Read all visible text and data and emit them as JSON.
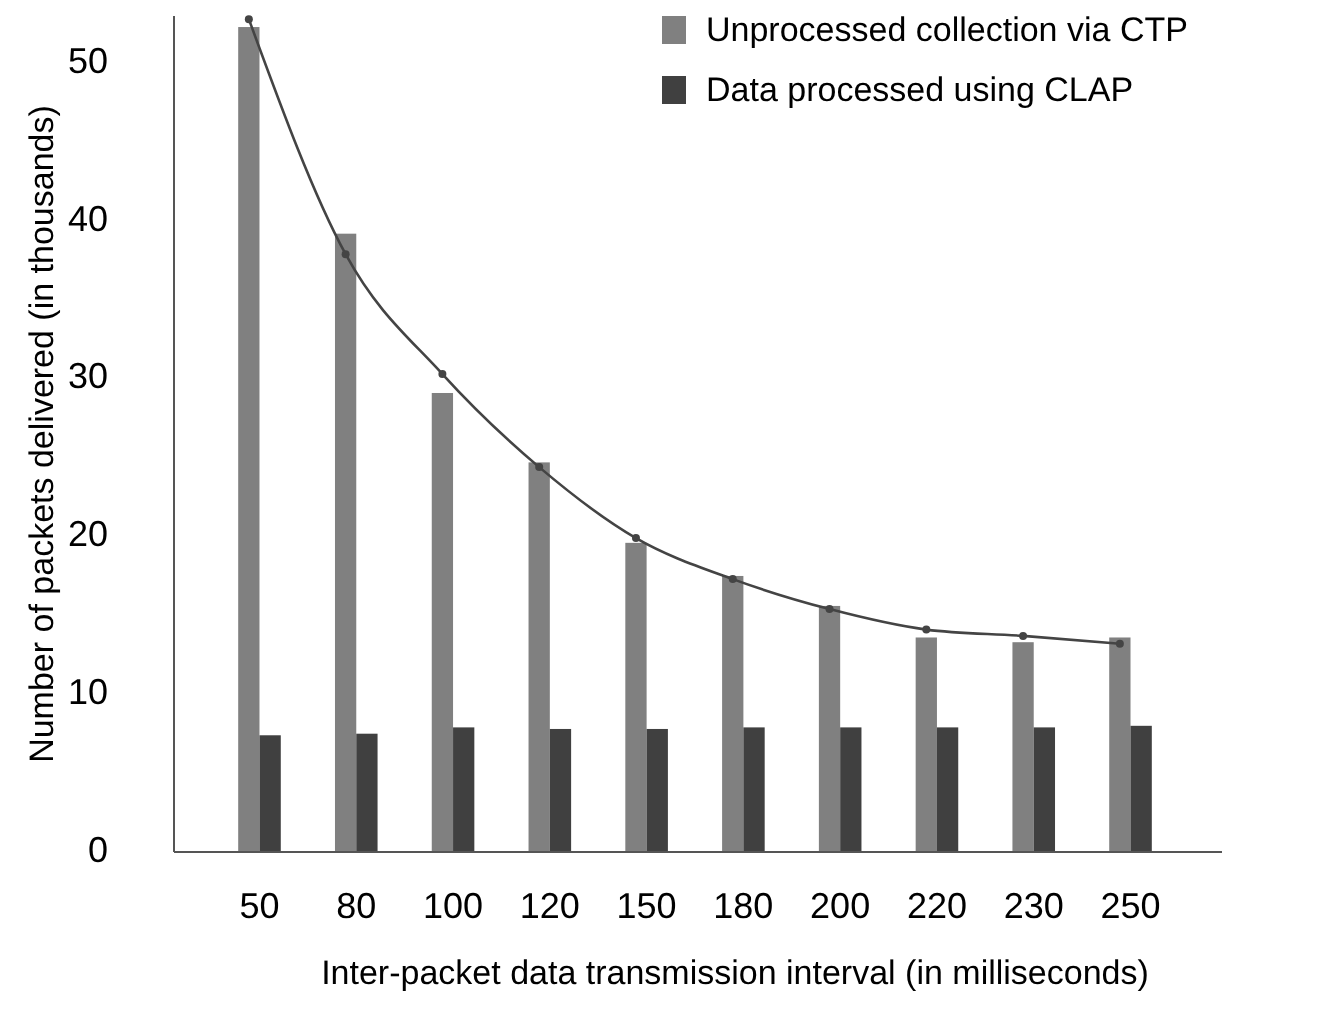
{
  "chart_data": {
    "type": "bar",
    "xlabel": "Inter-packet data transmission interval (in milliseconds)",
    "ylabel": "Number of packets delivered (in thousands)",
    "categories": [
      "50",
      "80",
      "100",
      "120",
      "150",
      "180",
      "200",
      "220",
      "230",
      "250"
    ],
    "series": [
      {
        "name": "Unprocessed collection via CTP",
        "color": "#808080",
        "values": [
          52.3,
          39.2,
          29.1,
          24.7,
          19.6,
          17.5,
          15.6,
          13.6,
          13.3,
          13.6
        ]
      },
      {
        "name": "Data processed using CLAP",
        "color": "#404040",
        "values": [
          7.4,
          7.5,
          7.9,
          7.8,
          7.8,
          7.9,
          7.9,
          7.9,
          7.9,
          8.0
        ]
      },
      {
        "type": "line",
        "color": "#444444",
        "marker": "circle",
        "values": [
          52.8,
          37.9,
          30.3,
          24.4,
          19.9,
          17.3,
          15.4,
          14.1,
          13.7,
          13.2
        ]
      }
    ],
    "ylim": [
      0,
      53
    ],
    "yticks": [
      0,
      10,
      20,
      30,
      40,
      50
    ],
    "grid": false,
    "legend": "top right"
  }
}
